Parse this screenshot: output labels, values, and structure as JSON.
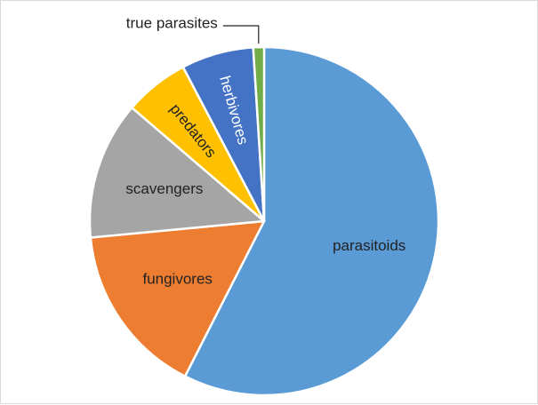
{
  "chart_data": {
    "type": "pie",
    "start_angle_deg": 0,
    "direction": "clockwise",
    "legend": "none",
    "slices": [
      {
        "label": "parasitoids",
        "value": 57.5,
        "color": "#5b9bd5",
        "label_color": "#222222"
      },
      {
        "label": "fungivores",
        "value": 16.0,
        "color": "#ed7d31",
        "label_color": "#222222"
      },
      {
        "label": "scavengers",
        "value": 12.8,
        "color": "#a5a5a5",
        "label_color": "#222222"
      },
      {
        "label": "predators",
        "value": 6.0,
        "color": "#ffc000",
        "label_color": "#222222"
      },
      {
        "label": "herbivores",
        "value": 6.7,
        "color": "#4472c4",
        "label_color": "#ffffff"
      },
      {
        "label": "true parasites",
        "value": 1.0,
        "color": "#70ad47",
        "label_color": "#222222"
      }
    ]
  }
}
